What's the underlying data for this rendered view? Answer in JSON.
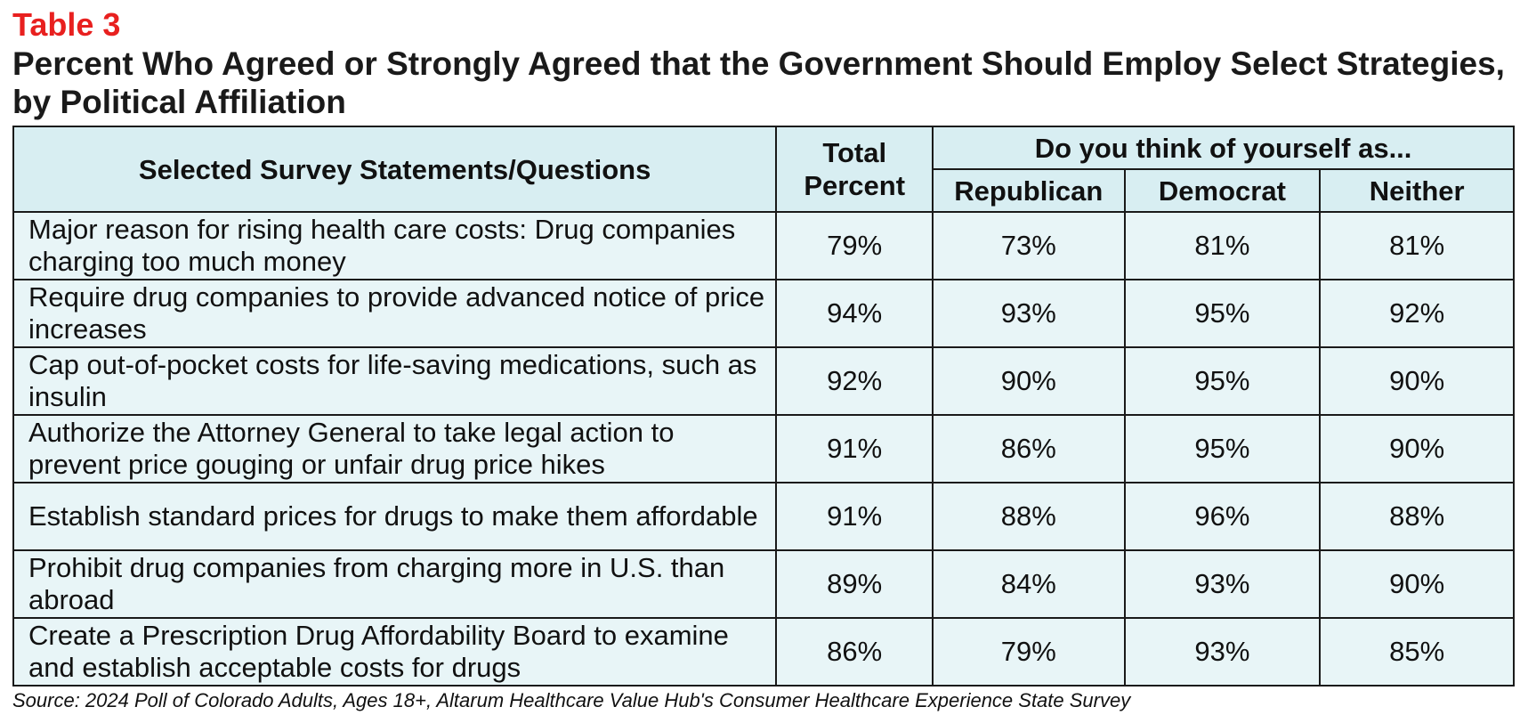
{
  "table_label": "Table 3",
  "title": "Percent Who Agreed or Strongly Agreed that the Government Should Employ Select Strategies, by Political Affiliation",
  "header": {
    "statements_col": "Selected Survey Statements/Questions",
    "total_col": "Total Percent",
    "group_col": "Do you think of yourself as...",
    "sub_cols": [
      "Republican",
      "Democrat",
      "Neither"
    ]
  },
  "rows": [
    {
      "statement": "Major reason for rising health care costs: Drug companies charging too much money",
      "total": "79%",
      "republican": "73%",
      "democrat": "81%",
      "neither": "81%"
    },
    {
      "statement": "Require drug companies to provide advanced notice of price increases",
      "total": "94%",
      "republican": "93%",
      "democrat": "95%",
      "neither": "92%"
    },
    {
      "statement": "Cap out-of-pocket costs for life-saving medications, such as insulin",
      "total": "92%",
      "republican": "90%",
      "democrat": "95%",
      "neither": "90%"
    },
    {
      "statement": "Authorize the Attorney General to take legal action to prevent price gouging or unfair drug price hikes",
      "total": "91%",
      "republican": "86%",
      "democrat": "95%",
      "neither": "90%"
    },
    {
      "statement": "Establish standard prices for drugs to make them affordable",
      "total": "91%",
      "republican": "88%",
      "democrat": "96%",
      "neither": "88%"
    },
    {
      "statement": "Prohibit drug companies from charging more in U.S. than abroad",
      "total": "89%",
      "republican": "84%",
      "democrat": "93%",
      "neither": "90%"
    },
    {
      "statement": "Create a Prescription Drug Affordability Board to examine and establish acceptable costs for drugs",
      "total": "86%",
      "republican": "79%",
      "democrat": "93%",
      "neither": "85%"
    }
  ],
  "source": "Source: 2024 Poll of Colorado Adults, Ages 18+, Altarum Healthcare Value Hub's Consumer Healthcare Experience State Survey",
  "colors": {
    "label_red": "#e8201f",
    "header_bg": "#d8eef2",
    "body_bg": "#e8f5f7",
    "border": "#1a1a1a"
  }
}
